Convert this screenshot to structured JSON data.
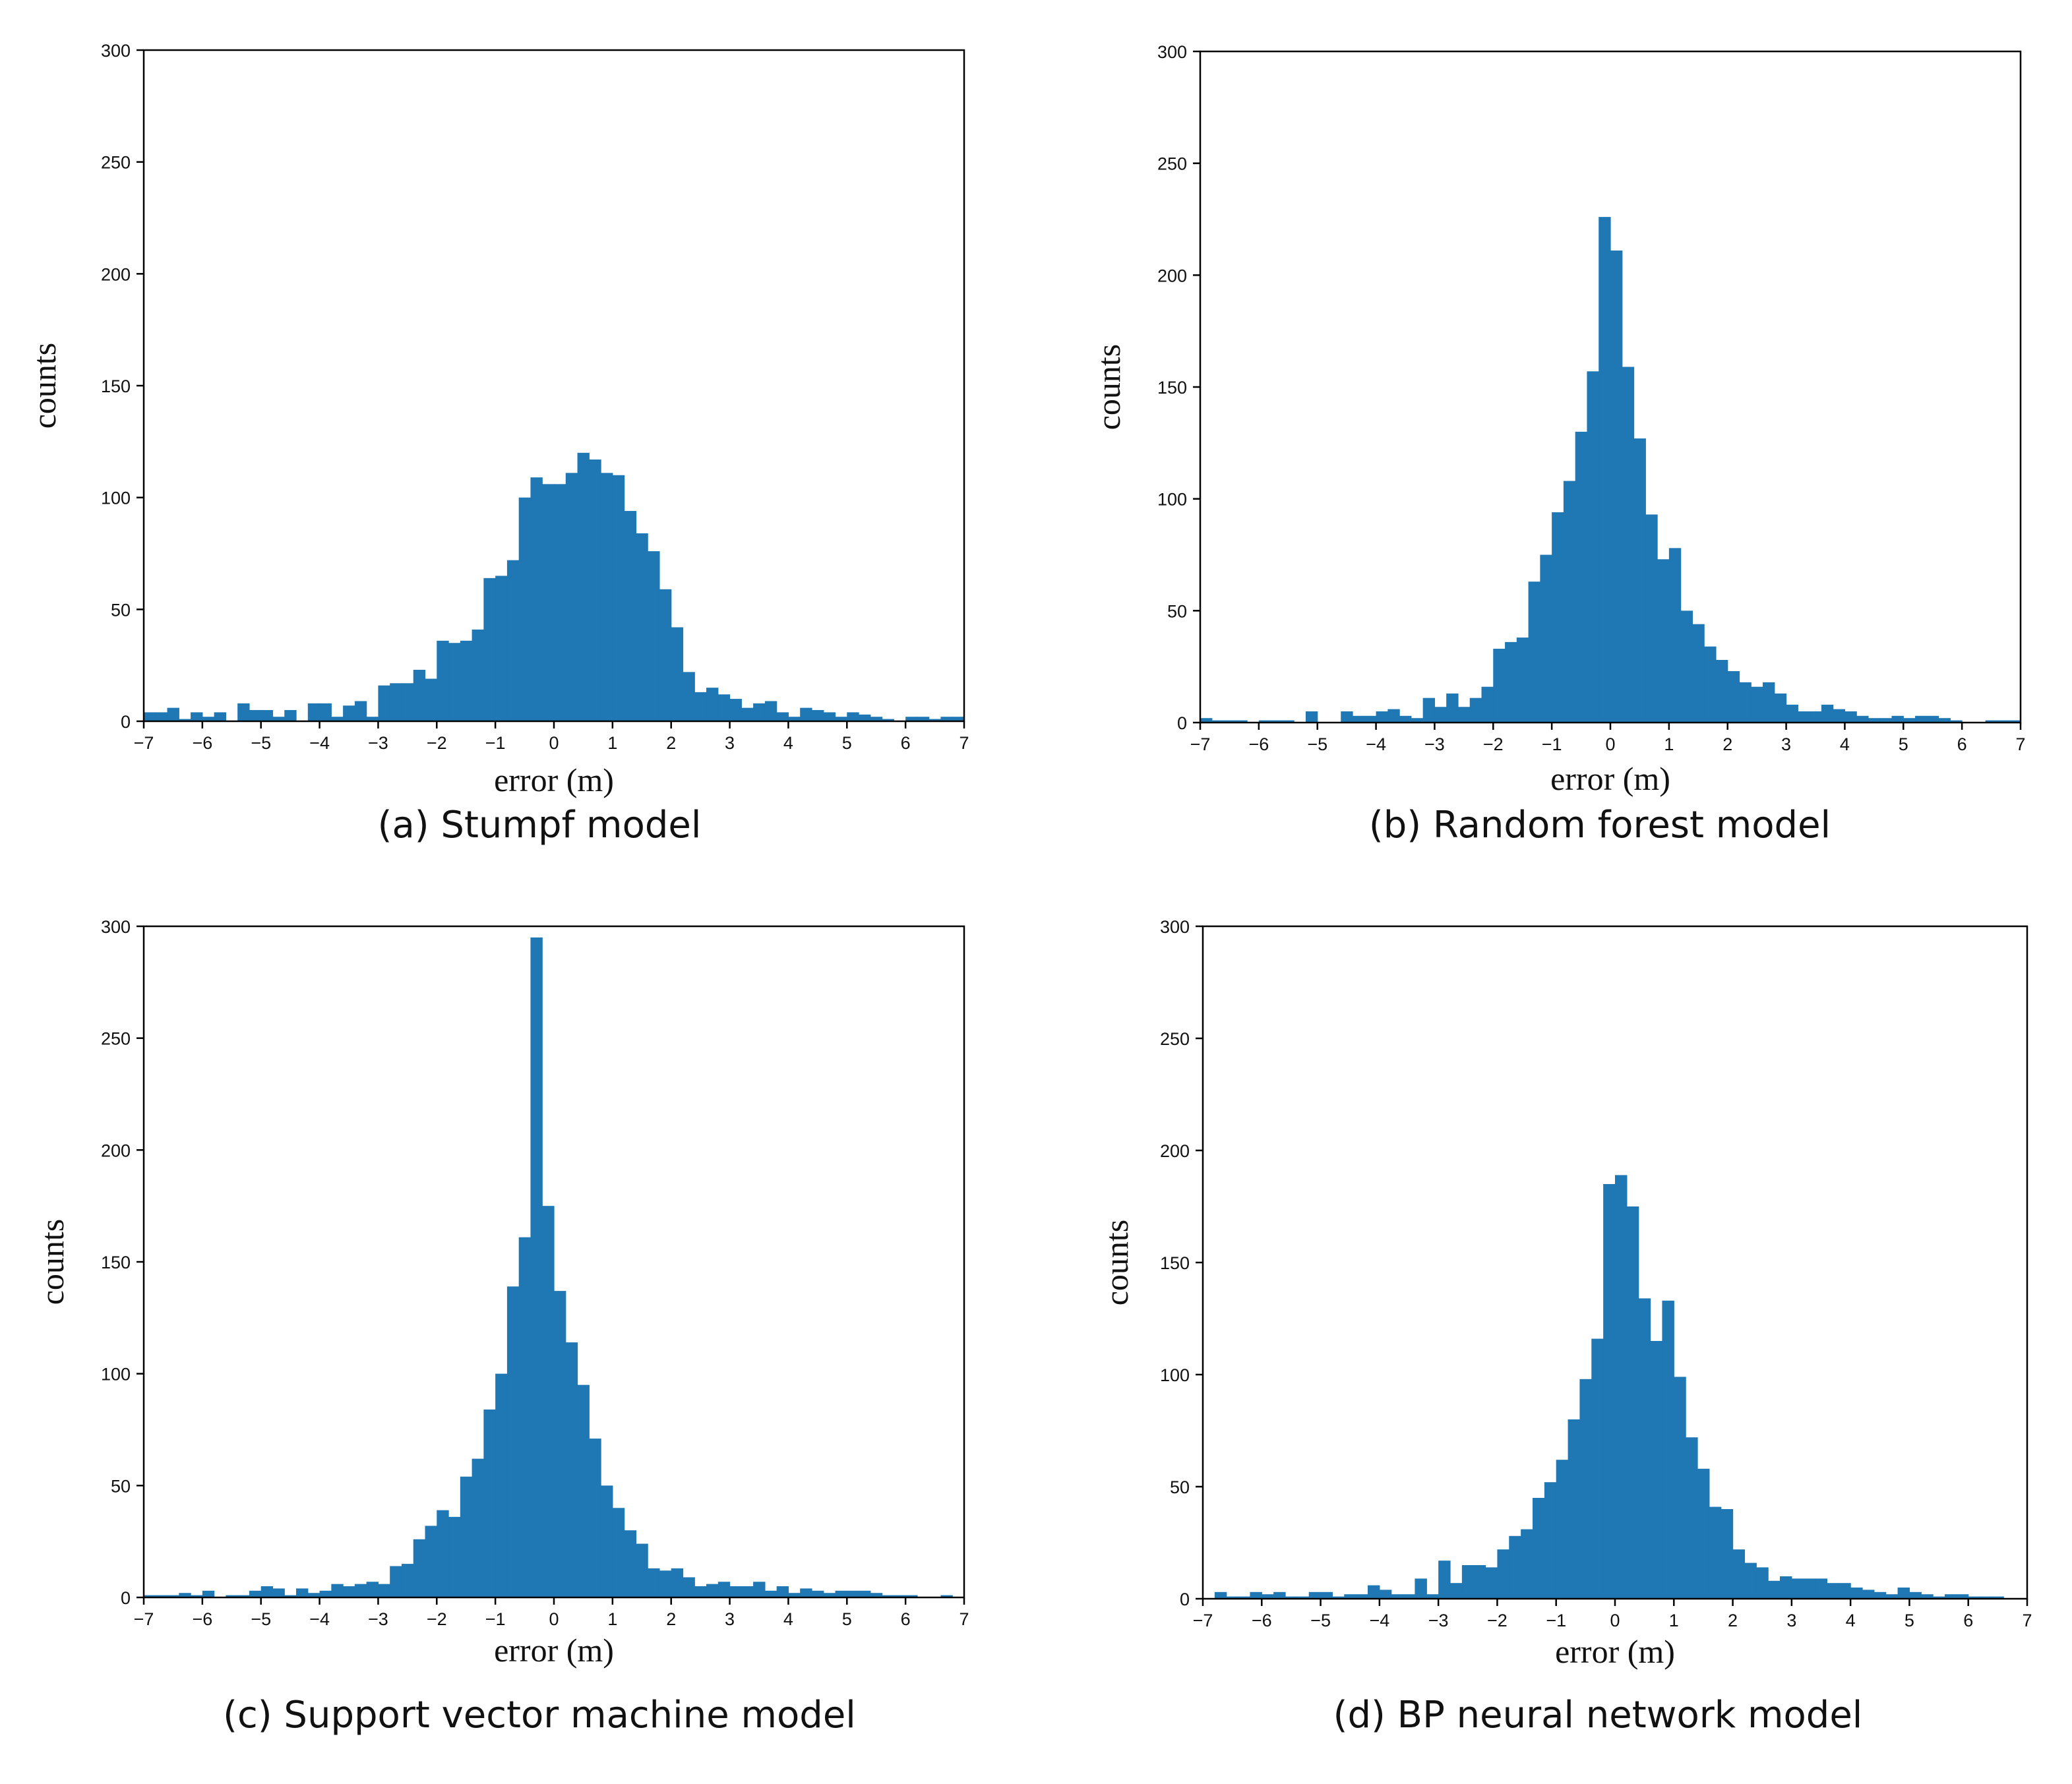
{
  "bar_color": "#1f77b4",
  "bin_start": -7,
  "bin_width": 0.2,
  "chart_data": [
    {
      "type": "bar",
      "title": "(a) Stumpf model",
      "xlabel": "error (m)",
      "ylabel": "counts",
      "xlim": [
        -7,
        7
      ],
      "ylim": [
        0,
        300
      ],
      "xticks": [
        -7,
        -6,
        -5,
        -4,
        -3,
        -2,
        -1,
        0,
        1,
        2,
        3,
        4,
        5,
        6,
        7
      ],
      "yticks": [
        0,
        50,
        100,
        150,
        200,
        250,
        300
      ],
      "values": [
        4,
        4,
        6,
        1,
        4,
        2,
        4,
        0,
        8,
        5,
        5,
        2,
        5,
        0,
        8,
        8,
        2,
        7,
        9,
        2,
        16,
        17,
        17,
        23,
        19,
        36,
        35,
        36,
        41,
        64,
        65,
        72,
        100,
        109,
        106,
        106,
        111,
        120,
        117,
        111,
        110,
        94,
        84,
        76,
        59,
        42,
        22,
        13,
        15,
        12,
        10,
        6,
        8,
        9,
        4,
        2,
        6,
        5,
        4,
        2,
        4,
        3,
        2,
        1,
        0,
        2,
        2,
        1,
        2,
        2
      ]
    },
    {
      "type": "bar",
      "title": "(b) Random forest model",
      "xlabel": "error (m)",
      "ylabel": "counts",
      "xlim": [
        -7,
        7
      ],
      "ylim": [
        0,
        300
      ],
      "xticks": [
        -7,
        -6,
        -5,
        -4,
        -3,
        -2,
        -1,
        0,
        1,
        2,
        3,
        4,
        5,
        6,
        7
      ],
      "yticks": [
        0,
        50,
        100,
        150,
        200,
        250,
        300
      ],
      "values": [
        2,
        1,
        1,
        1,
        0,
        1,
        1,
        1,
        0,
        5,
        0,
        0,
        5,
        3,
        3,
        5,
        6,
        3,
        2,
        11,
        7,
        13,
        7,
        11,
        16,
        33,
        36,
        38,
        63,
        75,
        94,
        108,
        130,
        157,
        226,
        211,
        159,
        127,
        93,
        73,
        78,
        50,
        44,
        34,
        28,
        23,
        18,
        16,
        18,
        13,
        8,
        5,
        5,
        8,
        6,
        5,
        3,
        2,
        2,
        3,
        2,
        3,
        3,
        2,
        1,
        0,
        0,
        1,
        1,
        1
      ]
    },
    {
      "type": "bar",
      "title": "(c) Support vector machine model",
      "xlabel": "error (m)",
      "ylabel": "counts",
      "xlim": [
        -7,
        7
      ],
      "ylim": [
        0,
        300
      ],
      "xticks": [
        -7,
        -6,
        -5,
        -4,
        -3,
        -2,
        -1,
        0,
        1,
        2,
        3,
        4,
        5,
        6,
        7
      ],
      "yticks": [
        0,
        50,
        100,
        150,
        200,
        250,
        300
      ],
      "values": [
        1,
        1,
        1,
        2,
        1,
        3,
        0,
        1,
        1,
        3,
        5,
        4,
        1,
        4,
        2,
        3,
        6,
        5,
        6,
        7,
        6,
        14,
        15,
        26,
        32,
        39,
        36,
        54,
        62,
        84,
        100,
        139,
        161,
        295,
        175,
        137,
        114,
        95,
        71,
        50,
        40,
        30,
        24,
        13,
        12,
        13,
        9,
        5,
        6,
        7,
        5,
        5,
        7,
        3,
        5,
        2,
        4,
        3,
        2,
        3,
        3,
        3,
        2,
        1,
        1,
        1,
        0,
        0,
        1,
        0
      ]
    },
    {
      "type": "bar",
      "title": "(d) BP neural network model",
      "xlabel": "error (m)",
      "ylabel": "counts",
      "xlim": [
        -7,
        7
      ],
      "ylim": [
        0,
        300
      ],
      "xticks": [
        -7,
        -6,
        -5,
        -4,
        -3,
        -2,
        -1,
        0,
        1,
        2,
        3,
        4,
        5,
        6,
        7
      ],
      "yticks": [
        0,
        50,
        100,
        150,
        200,
        250,
        300
      ],
      "values": [
        0,
        3,
        1,
        1,
        3,
        2,
        3,
        1,
        1,
        3,
        3,
        1,
        2,
        2,
        6,
        4,
        2,
        2,
        9,
        2,
        17,
        7,
        15,
        15,
        14,
        22,
        28,
        31,
        45,
        52,
        62,
        80,
        98,
        116,
        185,
        189,
        175,
        134,
        115,
        133,
        99,
        72,
        58,
        41,
        40,
        22,
        16,
        14,
        8,
        10,
        9,
        9,
        9,
        7,
        7,
        5,
        4,
        3,
        2,
        5,
        3,
        2,
        1,
        2,
        2,
        1,
        1,
        1,
        0,
        0
      ]
    }
  ]
}
